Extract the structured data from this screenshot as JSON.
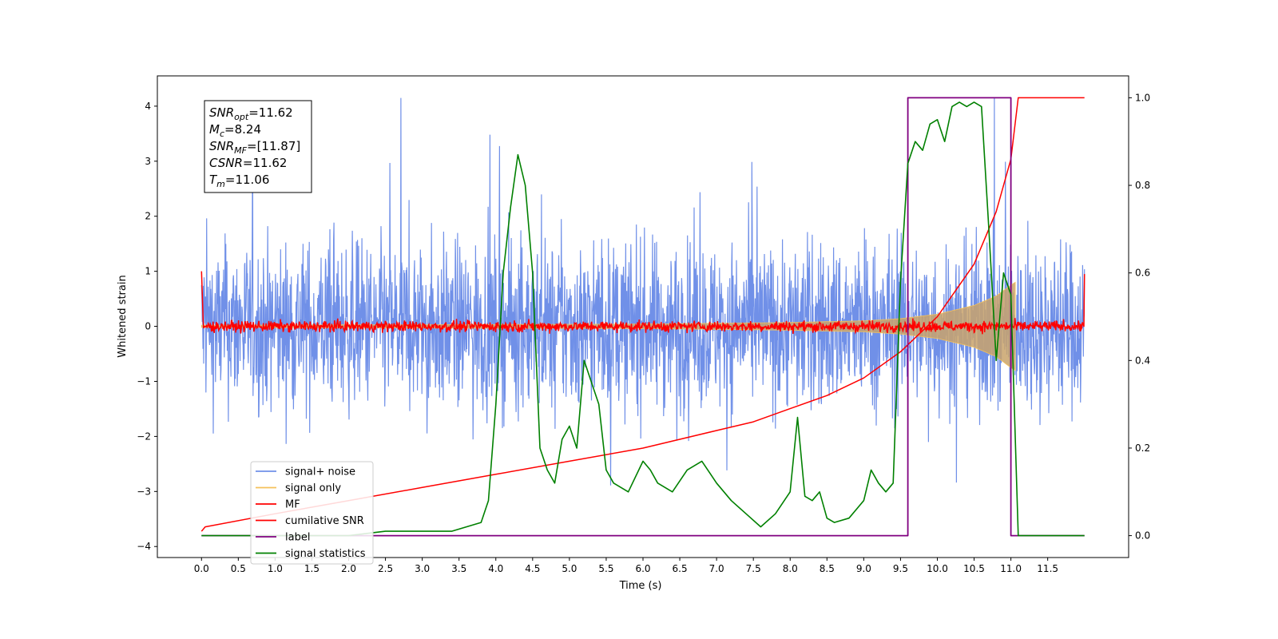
{
  "chart_data": {
    "type": "line",
    "xlabel": "Time (s)",
    "ylabel": "Whitened strain",
    "xlim": [
      -0.6,
      12.6
    ],
    "ylim": [
      -4.2,
      4.55
    ],
    "y2lim": [
      -0.05,
      1.05
    ],
    "x_ticks": [
      "0.0",
      "0.5",
      "1.0",
      "1.5",
      "2.0",
      "2.5",
      "3.0",
      "3.5",
      "4.0",
      "4.5",
      "5.0",
      "5.5",
      "6.0",
      "6.5",
      "7.0",
      "7.5",
      "8.0",
      "8.5",
      "9.0",
      "9.5",
      "10.0",
      "10.5",
      "11.0",
      "11.5"
    ],
    "y_ticks": [
      "−4",
      "−3",
      "−2",
      "−1",
      "0",
      "1",
      "2",
      "3",
      "4"
    ],
    "y2_ticks": [
      "0.0",
      "0.2",
      "0.4",
      "0.6",
      "0.8",
      "1.0"
    ],
    "grid": false,
    "annotation": {
      "lines": [
        {
          "sym": "SNR",
          "sub": "opt",
          "val": "=11.62"
        },
        {
          "sym": "M",
          "sub": "c",
          "val": "=8.24"
        },
        {
          "sym": "SNR",
          "sub": "MF",
          "val": "=[11.87]"
        },
        {
          "sym": "CSNR",
          "sub": "",
          "val": "=11.62"
        },
        {
          "sym": "T",
          "sub": "m",
          "val": "=11.06"
        }
      ]
    },
    "legend_position": "lower-left",
    "series": [
      {
        "name": "signal+ noise",
        "color": "#7090e8",
        "axis": "left",
        "kind": "noise",
        "envelope": 2.4,
        "x_range": [
          0.0,
          12.0
        ]
      },
      {
        "name": "signal only",
        "color": "#f5c15a",
        "axis": "left",
        "kind": "chirp",
        "x": [
          0.0,
          6.0,
          8.0,
          9.0,
          9.5,
          10.0,
          10.5,
          10.8,
          11.0,
          11.06
        ],
        "amplitude": [
          0.02,
          0.04,
          0.07,
          0.1,
          0.14,
          0.22,
          0.38,
          0.55,
          0.75,
          0.8
        ]
      },
      {
        "name": "MF",
        "color": "#ff0000",
        "axis": "left",
        "kind": "noise",
        "envelope": 0.13,
        "x_range": [
          0.0,
          12.0
        ]
      },
      {
        "name": "cumilative SNR",
        "color": "#ff0000",
        "axis": "right",
        "x": [
          0.0,
          0.05,
          1.0,
          2.0,
          3.0,
          4.0,
          5.0,
          6.0,
          7.0,
          7.5,
          8.0,
          8.5,
          9.0,
          9.5,
          10.0,
          10.5,
          10.8,
          11.0,
          11.1,
          12.0
        ],
        "y": [
          0.01,
          0.02,
          0.05,
          0.08,
          0.11,
          0.14,
          0.17,
          0.2,
          0.24,
          0.26,
          0.29,
          0.32,
          0.36,
          0.42,
          0.5,
          0.62,
          0.74,
          0.86,
          1.0,
          1.0
        ]
      },
      {
        "name": "label",
        "color": "#800080",
        "axis": "right",
        "x": [
          0.0,
          9.6,
          9.6,
          11.0,
          11.0,
          12.0
        ],
        "y": [
          0.0,
          0.0,
          1.0,
          1.0,
          0.0,
          0.0
        ]
      },
      {
        "name": "signal statistics",
        "color": "#008000",
        "axis": "right",
        "x": [
          0.0,
          0.5,
          1.0,
          1.5,
          2.0,
          2.5,
          3.0,
          3.4,
          3.6,
          3.8,
          3.9,
          4.0,
          4.1,
          4.2,
          4.3,
          4.4,
          4.5,
          4.6,
          4.7,
          4.8,
          4.9,
          5.0,
          5.1,
          5.2,
          5.3,
          5.4,
          5.5,
          5.6,
          5.8,
          6.0,
          6.1,
          6.2,
          6.4,
          6.6,
          6.8,
          7.0,
          7.2,
          7.4,
          7.6,
          7.8,
          8.0,
          8.1,
          8.2,
          8.3,
          8.4,
          8.5,
          8.6,
          8.8,
          9.0,
          9.1,
          9.2,
          9.3,
          9.4,
          9.5,
          9.6,
          9.7,
          9.8,
          9.9,
          10.0,
          10.1,
          10.2,
          10.3,
          10.4,
          10.5,
          10.6,
          10.7,
          10.8,
          10.9,
          11.0,
          11.1,
          11.5,
          12.0
        ],
        "y": [
          0.0,
          0.0,
          0.0,
          0.0,
          0.0,
          0.01,
          0.01,
          0.01,
          0.02,
          0.03,
          0.08,
          0.3,
          0.6,
          0.75,
          0.87,
          0.8,
          0.6,
          0.2,
          0.15,
          0.12,
          0.22,
          0.25,
          0.2,
          0.4,
          0.35,
          0.3,
          0.15,
          0.12,
          0.1,
          0.17,
          0.15,
          0.12,
          0.1,
          0.15,
          0.17,
          0.12,
          0.08,
          0.05,
          0.02,
          0.05,
          0.1,
          0.27,
          0.09,
          0.08,
          0.1,
          0.04,
          0.03,
          0.04,
          0.08,
          0.15,
          0.12,
          0.1,
          0.12,
          0.58,
          0.85,
          0.9,
          0.88,
          0.94,
          0.95,
          0.9,
          0.98,
          0.99,
          0.98,
          0.99,
          0.98,
          0.7,
          0.4,
          0.6,
          0.55,
          0.0,
          0.0,
          0.0
        ]
      }
    ]
  }
}
